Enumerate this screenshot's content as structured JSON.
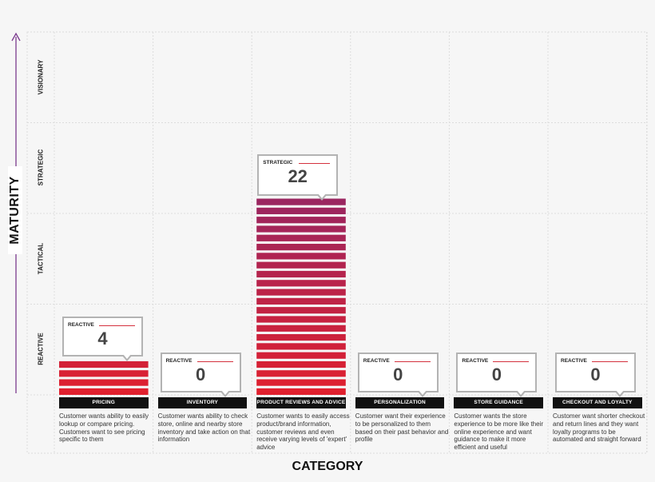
{
  "chart_data": {
    "type": "bar",
    "xlabel": "CATEGORY",
    "ylabel": "MATURITY",
    "y_levels": [
      "REACTIVE",
      "TACTICAL",
      "STRATEGIC",
      "VISIONARY"
    ],
    "categories": [
      "PRICING",
      "INVENTORY",
      "PRODUCT REVIEWS AND ADVICE",
      "PERSONALIZATION",
      "STORE GUIDANCE",
      "CHECKOUT AND LOYALTY"
    ],
    "values": [
      4,
      0,
      22,
      0,
      0,
      0
    ],
    "levels": [
      "REACTIVE",
      "REACTIVE",
      "STRATEGIC",
      "REACTIVE",
      "REACTIVE",
      "REACTIVE"
    ],
    "descriptions": [
      "Customer wants ability to easily lookup or compare pricing. Customers want to see pricing specific to them",
      "Customer wants ability to check store, online and nearby store inventory and take action on that information",
      "Customer wants to easily access product/brand information, customer reviews and even receive varying levels of 'expert' advice",
      "Customer want their experience to be personalized to them based on their past behavior and profile",
      "Customer wants the store experience to be more like their online experience and want guidance to make it more efficient and useful",
      "Customer want shorter checkout and return lines and they want loyalty programs to be automated and straight forward"
    ],
    "grid": true,
    "colors": {
      "low": "#e0202e",
      "high": "#9b2660",
      "label_bg": "#111111",
      "axis_arrow": "#7b3a8e",
      "callout_rule": "#d4313e"
    }
  }
}
